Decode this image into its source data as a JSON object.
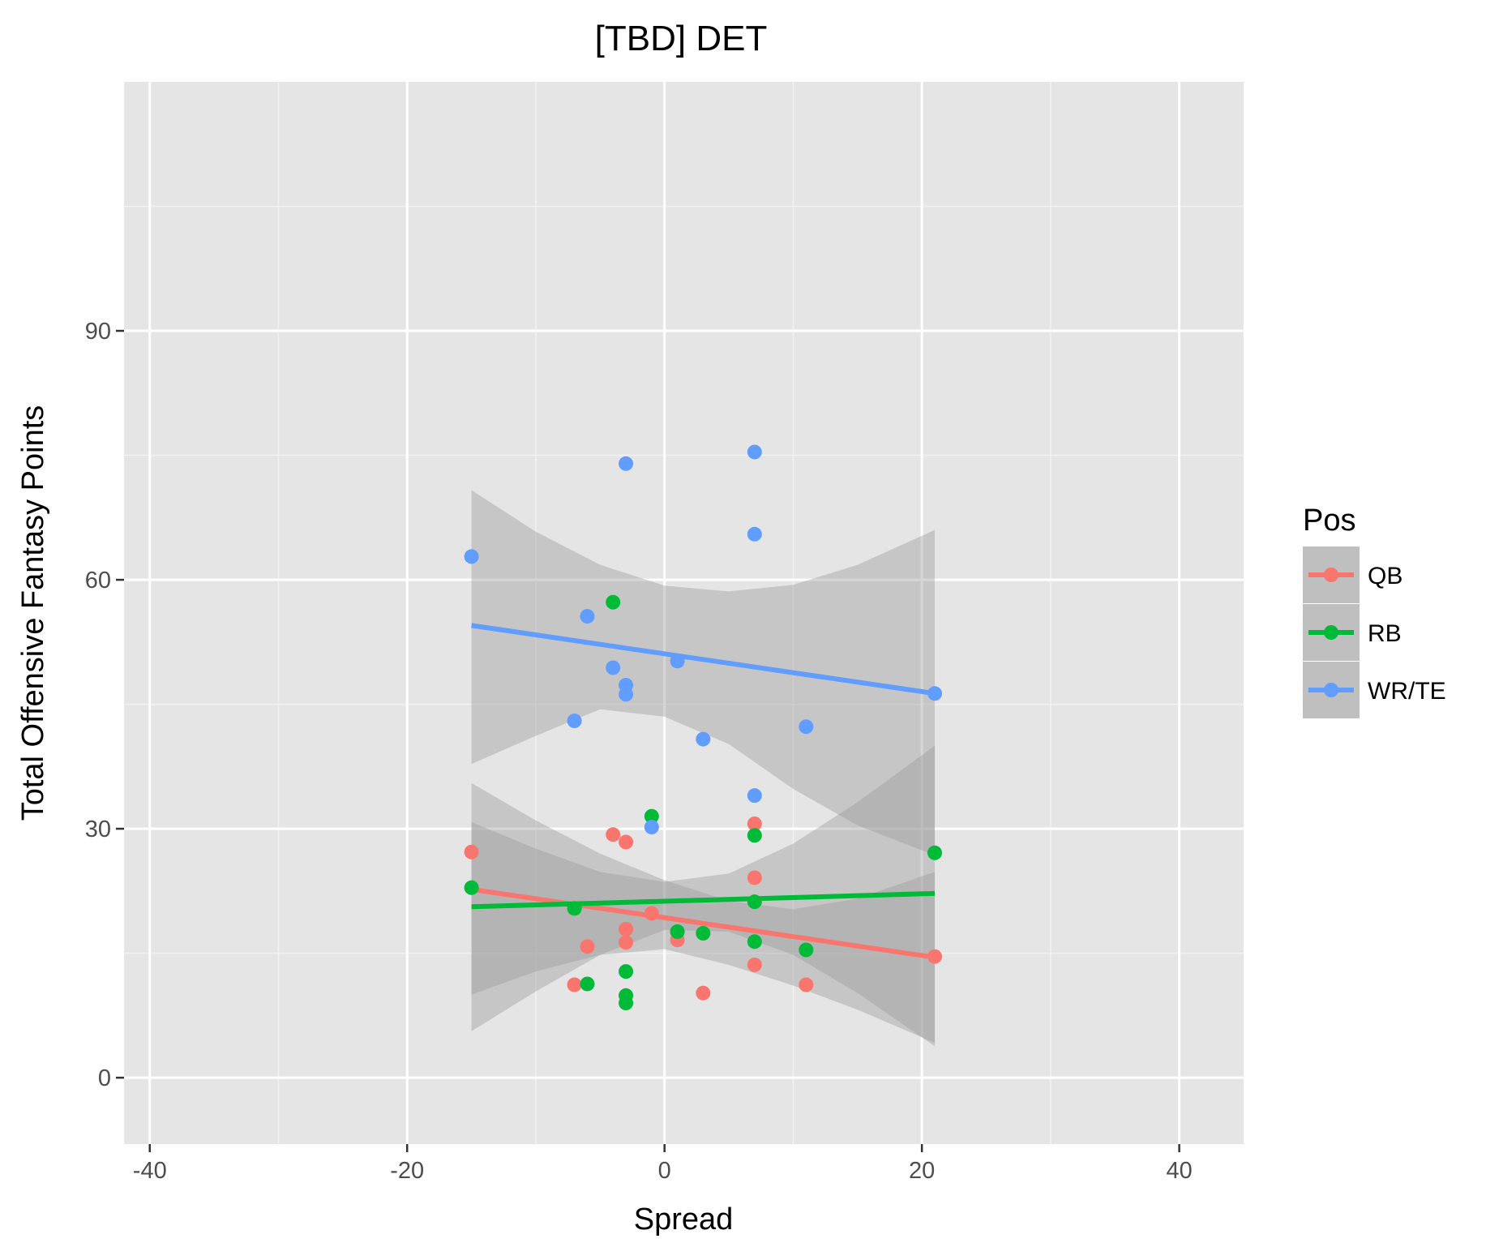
{
  "chart_data": {
    "type": "scatter",
    "title": "[TBD] DET",
    "xlabel": "Spread",
    "ylabel": "Total Offensive Fantasy Points",
    "xlim": [
      -42,
      45
    ],
    "ylim": [
      -8,
      120
    ],
    "x_ticks": [
      -40,
      -20,
      0,
      20,
      40
    ],
    "x_minor": [
      -30,
      -10,
      10,
      30
    ],
    "y_ticks": [
      0,
      30,
      60,
      90
    ],
    "y_minor": [
      15,
      45,
      75,
      105
    ],
    "x_tick_labels": [
      "-40",
      "-20",
      "0",
      "20",
      "40"
    ],
    "y_tick_labels": [
      "0",
      "30",
      "60",
      "90"
    ],
    "grid": true,
    "legend": {
      "title": "Pos",
      "position": "right",
      "entries": [
        "QB",
        "RB",
        "WR/TE"
      ]
    },
    "series": [
      {
        "name": "QB",
        "color": "#F8766D",
        "points": [
          [
            -15,
            27.2
          ],
          [
            -7,
            11.2
          ],
          [
            -6,
            15.8
          ],
          [
            -4,
            29.3
          ],
          [
            -3,
            28.4
          ],
          [
            -3,
            17.9
          ],
          [
            -3,
            16.3
          ],
          [
            -1,
            19.8
          ],
          [
            1,
            16.6
          ],
          [
            3,
            10.2
          ],
          [
            7,
            30.6
          ],
          [
            7,
            24.1
          ],
          [
            7,
            13.6
          ],
          [
            11,
            11.2
          ],
          [
            21,
            14.6
          ]
        ],
        "fit": {
          "x": [
            -15,
            21
          ],
          "y": [
            22.7,
            14.5
          ]
        },
        "band_upper": [
          [
            -15,
            35.5
          ],
          [
            -10,
            31.0
          ],
          [
            -5,
            27.0
          ],
          [
            0,
            23.8
          ],
          [
            5,
            21.3
          ],
          [
            10,
            20.3
          ],
          [
            15,
            21.6
          ],
          [
            21,
            24.8
          ]
        ],
        "band_lower": [
          [
            -15,
            10.0
          ],
          [
            -10,
            12.8
          ],
          [
            -5,
            14.8
          ],
          [
            0,
            15.5
          ],
          [
            5,
            13.6
          ],
          [
            10,
            11.1
          ],
          [
            15,
            8.2
          ],
          [
            21,
            4.2
          ]
        ]
      },
      {
        "name": "RB",
        "color": "#00BA38",
        "points": [
          [
            -15,
            22.9
          ],
          [
            -7,
            20.4
          ],
          [
            -6,
            11.3
          ],
          [
            -4,
            57.3
          ],
          [
            -3,
            12.8
          ],
          [
            -3,
            9.9
          ],
          [
            -3,
            9.0
          ],
          [
            -1,
            31.5
          ],
          [
            1,
            17.6
          ],
          [
            3,
            17.4
          ],
          [
            7,
            29.2
          ],
          [
            7,
            21.2
          ],
          [
            7,
            16.4
          ],
          [
            11,
            15.4
          ],
          [
            21,
            27.1
          ]
        ],
        "fit": {
          "x": [
            -15,
            21
          ],
          "y": [
            20.6,
            22.2
          ]
        },
        "band_upper": [
          [
            -15,
            30.8
          ],
          [
            -10,
            27.6
          ],
          [
            -5,
            24.8
          ],
          [
            0,
            23.6
          ],
          [
            5,
            24.6
          ],
          [
            10,
            28.2
          ],
          [
            15,
            33.2
          ],
          [
            21,
            40.0
          ]
        ],
        "band_lower": [
          [
            -15,
            5.6
          ],
          [
            -10,
            10.4
          ],
          [
            -5,
            14.8
          ],
          [
            0,
            17.8
          ],
          [
            5,
            17.6
          ],
          [
            10,
            14.8
          ],
          [
            15,
            10.2
          ],
          [
            21,
            3.8
          ]
        ]
      },
      {
        "name": "WR/TE",
        "color": "#619CFF",
        "points": [
          [
            -15,
            62.8
          ],
          [
            -7,
            43.0
          ],
          [
            -6,
            55.6
          ],
          [
            -4,
            49.4
          ],
          [
            -3,
            74.0
          ],
          [
            -3,
            47.3
          ],
          [
            -3,
            46.2
          ],
          [
            -1,
            30.2
          ],
          [
            1,
            50.2
          ],
          [
            3,
            40.8
          ],
          [
            7,
            75.4
          ],
          [
            7,
            65.5
          ],
          [
            7,
            34.0
          ],
          [
            11,
            42.3
          ],
          [
            21,
            46.3
          ]
        ],
        "fit": {
          "x": [
            -15,
            21
          ],
          "y": [
            54.5,
            46.3
          ]
        },
        "band_upper": [
          [
            -15,
            70.8
          ],
          [
            -10,
            65.8
          ],
          [
            -5,
            61.8
          ],
          [
            0,
            59.3
          ],
          [
            5,
            58.6
          ],
          [
            10,
            59.4
          ],
          [
            15,
            61.8
          ],
          [
            21,
            66.0
          ]
        ],
        "band_lower": [
          [
            -15,
            37.8
          ],
          [
            -10,
            41.2
          ],
          [
            -5,
            44.4
          ],
          [
            0,
            43.5
          ],
          [
            5,
            40.2
          ],
          [
            10,
            34.8
          ],
          [
            15,
            30.4
          ],
          [
            21,
            26.8
          ]
        ]
      }
    ]
  }
}
